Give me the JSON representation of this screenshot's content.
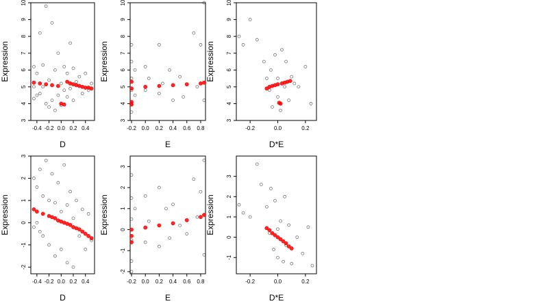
{
  "chart_data": [
    {
      "type": "scatter",
      "xlabel": "D",
      "ylabel": "Expression",
      "xlim": [
        -0.5,
        0.55
      ],
      "ylim": [
        3,
        10
      ],
      "xticks": [
        -0.4,
        -0.2,
        0.0,
        0.2,
        0.4
      ],
      "xtick_labels": [
        "-0.4",
        "-0.2",
        "0.0",
        "0.2",
        "0.4"
      ],
      "yticks": [
        3,
        4,
        5,
        6,
        7,
        8,
        9,
        10
      ],
      "ytick_labels": [
        "3",
        "4",
        "5",
        "6",
        "7",
        "8",
        "9",
        "10"
      ],
      "series": [
        {
          "role": "observed",
          "x": [
            -0.45,
            -0.45,
            -0.45,
            -0.4,
            -0.4,
            -0.35,
            -0.35,
            -0.3,
            -0.3,
            -0.25,
            -0.25,
            -0.2,
            -0.2,
            -0.15,
            -0.15,
            -0.1,
            -0.1,
            -0.05,
            -0.05,
            0.0,
            0.0,
            0.05,
            0.05,
            0.1,
            0.1,
            0.15,
            0.15,
            0.2,
            0.2,
            0.25,
            0.3,
            0.35,
            0.4,
            0.45,
            0.5
          ],
          "y": [
            6.2,
            5.0,
            4.3,
            5.8,
            4.5,
            8.2,
            4.6,
            6.3,
            5.0,
            9.8,
            4.0,
            5.4,
            3.8,
            8.8,
            4.2,
            6.0,
            3.6,
            7.0,
            4.5,
            5.2,
            3.9,
            6.2,
            4.8,
            5.8,
            4.4,
            7.6,
            4.9,
            6.1,
            4.2,
            5.3,
            5.6,
            4.6,
            5.8,
            4.8,
            5.2
          ]
        },
        {
          "role": "fitted",
          "x": [
            -0.45,
            -0.35,
            -0.25,
            -0.15,
            -0.05,
            0.0,
            0.05,
            0.1,
            0.15,
            0.2,
            0.25,
            0.3,
            0.35,
            0.4,
            0.45,
            0.5
          ],
          "y": [
            5.25,
            5.2,
            5.15,
            5.1,
            5.05,
            4.0,
            3.95,
            5.3,
            5.2,
            5.15,
            5.1,
            5.05,
            5.0,
            4.95,
            4.95,
            4.9
          ]
        }
      ]
    },
    {
      "type": "scatter",
      "xlabel": "E",
      "ylabel": "Expression",
      "xlim": [
        -0.22,
        0.87
      ],
      "ylim": [
        3,
        10
      ],
      "xticks": [
        -0.2,
        0.0,
        0.2,
        0.4,
        0.6,
        0.8
      ],
      "xtick_labels": [
        "-0.2",
        "0.0",
        "0.2",
        "0.4",
        "0.6",
        "0.8"
      ],
      "yticks": [
        3,
        4,
        5,
        6,
        7,
        8,
        9,
        10
      ],
      "ytick_labels": [
        "3",
        "4",
        "5",
        "6",
        "7",
        "8",
        "9",
        "10"
      ],
      "series": [
        {
          "role": "observed",
          "x": [
            -0.2,
            -0.2,
            -0.2,
            -0.2,
            -0.2,
            -0.2,
            -0.15,
            -0.15,
            0.0,
            0.0,
            0.05,
            0.2,
            0.2,
            0.25,
            0.35,
            0.4,
            0.5,
            0.55,
            0.7,
            0.75,
            0.8,
            0.85,
            0.85
          ],
          "y": [
            7.5,
            6.5,
            5.5,
            4.8,
            4.0,
            3.5,
            6.0,
            4.5,
            6.2,
            4.8,
            5.5,
            7.5,
            4.6,
            5.2,
            6.0,
            4.2,
            5.6,
            4.4,
            8.2,
            5.0,
            7.5,
            10.0,
            4.2
          ]
        },
        {
          "role": "fitted",
          "x": [
            -0.2,
            -0.2,
            -0.2,
            -0.2,
            0.0,
            0.2,
            0.4,
            0.6,
            0.8,
            0.85
          ],
          "y": [
            5.3,
            4.9,
            4.1,
            3.95,
            5.0,
            5.05,
            5.1,
            5.15,
            5.2,
            5.25
          ]
        }
      ]
    },
    {
      "type": "scatter",
      "xlabel": "D*E",
      "ylabel": "Expression",
      "xlim": [
        -0.3,
        0.28
      ],
      "ylim": [
        3,
        10
      ],
      "xticks": [
        -0.2,
        0.0,
        0.2
      ],
      "xtick_labels": [
        "-0.2",
        "0.0",
        "0.2"
      ],
      "yticks": [
        3,
        4,
        5,
        6,
        7,
        8,
        9,
        10
      ],
      "ytick_labels": [
        "3",
        "4",
        "5",
        "6",
        "7",
        "8",
        "9",
        "10"
      ],
      "series": [
        {
          "role": "observed",
          "x": [
            -0.28,
            -0.25,
            -0.2,
            -0.15,
            -0.1,
            -0.08,
            -0.06,
            -0.05,
            -0.04,
            -0.02,
            0.0,
            0.0,
            0.02,
            0.03,
            0.05,
            0.06,
            0.08,
            0.1,
            0.12,
            0.15,
            0.2,
            0.24
          ],
          "y": [
            8.0,
            7.5,
            9.0,
            7.8,
            6.5,
            5.5,
            4.8,
            6.0,
            3.8,
            6.9,
            5.5,
            4.4,
            3.6,
            7.2,
            5.0,
            6.5,
            4.2,
            5.6,
            5.2,
            5.0,
            6.2,
            4.0
          ]
        },
        {
          "role": "fitted",
          "x": [
            -0.08,
            -0.06,
            -0.04,
            -0.02,
            0.0,
            0.01,
            0.02,
            0.03,
            0.05,
            0.07,
            0.09
          ],
          "y": [
            4.9,
            5.0,
            5.05,
            5.1,
            5.15,
            4.05,
            4.0,
            5.2,
            5.25,
            5.3,
            5.35
          ]
        }
      ]
    },
    {
      "type": "scatter",
      "xlabel": "D",
      "ylabel": "Expression",
      "xlim": [
        -0.5,
        0.55
      ],
      "ylim": [
        -2.3,
        3
      ],
      "xticks": [
        -0.4,
        -0.2,
        0.0,
        0.2,
        0.4
      ],
      "xtick_labels": [
        "-0.4",
        "-0.2",
        "0.0",
        "0.2",
        "0.4"
      ],
      "yticks": [
        -2,
        -1,
        0,
        1,
        2,
        3
      ],
      "ytick_labels": [
        "-2",
        "-1",
        "0",
        "1",
        "2",
        "3"
      ],
      "series": [
        {
          "role": "observed",
          "x": [
            -0.45,
            -0.45,
            -0.4,
            -0.4,
            -0.35,
            -0.35,
            -0.3,
            -0.3,
            -0.25,
            -0.2,
            -0.2,
            -0.15,
            -0.1,
            -0.1,
            -0.05,
            0.0,
            0.0,
            0.05,
            0.1,
            0.1,
            0.15,
            0.2,
            0.2,
            0.25,
            0.3,
            0.35,
            0.4,
            0.45,
            0.5
          ],
          "y": [
            2.0,
            -0.2,
            1.6,
            0.0,
            2.4,
            -0.4,
            1.2,
            -0.6,
            2.8,
            1.0,
            -1.0,
            2.2,
            0.9,
            -1.5,
            1.8,
            0.5,
            -1.2,
            2.6,
            0.8,
            -1.8,
            1.4,
            0.2,
            -2.0,
            1.0,
            -0.6,
            0.6,
            -1.2,
            0.4,
            -0.8
          ]
        },
        {
          "role": "fitted",
          "x": [
            -0.45,
            -0.4,
            -0.3,
            -0.2,
            -0.15,
            -0.1,
            -0.05,
            0.0,
            0.05,
            0.1,
            0.15,
            0.2,
            0.25,
            0.3,
            0.35,
            0.4,
            0.45,
            0.5
          ],
          "y": [
            0.6,
            0.5,
            0.4,
            0.3,
            0.25,
            0.2,
            0.1,
            0.05,
            0.0,
            -0.05,
            -0.1,
            -0.2,
            -0.25,
            -0.3,
            -0.4,
            -0.5,
            -0.6,
            -0.7
          ]
        }
      ]
    },
    {
      "type": "scatter",
      "xlabel": "E",
      "ylabel": "Expression",
      "xlim": [
        -0.22,
        0.87
      ],
      "ylim": [
        -2.1,
        3.5
      ],
      "xticks": [
        -0.2,
        0.0,
        0.2,
        0.4,
        0.6,
        0.8
      ],
      "xtick_labels": [
        "-0.2",
        "0.0",
        "0.2",
        "0.4",
        "0.6",
        "0.8"
      ],
      "yticks": [
        -2,
        -1,
        0,
        1,
        2,
        3
      ],
      "ytick_labels": [
        "-2",
        "-1",
        "0",
        "1",
        "2",
        "3"
      ],
      "series": [
        {
          "role": "observed",
          "x": [
            -0.2,
            -0.2,
            -0.2,
            -0.2,
            -0.2,
            -0.2,
            -0.15,
            0.0,
            0.0,
            0.05,
            0.2,
            0.2,
            0.3,
            0.35,
            0.4,
            0.5,
            0.6,
            0.7,
            0.75,
            0.8,
            0.85,
            0.85
          ],
          "y": [
            2.6,
            1.5,
            0.5,
            -0.5,
            -1.5,
            -2.0,
            1.0,
            1.6,
            -0.6,
            0.4,
            2.0,
            -0.8,
            1.0,
            -0.4,
            1.2,
            0.2,
            -0.2,
            2.4,
            0.6,
            1.8,
            3.3,
            -1.2
          ]
        },
        {
          "role": "fitted",
          "x": [
            -0.2,
            -0.2,
            -0.2,
            0.0,
            0.2,
            0.4,
            0.6,
            0.8,
            0.85
          ],
          "y": [
            0.0,
            -0.3,
            -0.6,
            0.1,
            0.2,
            0.3,
            0.45,
            0.6,
            0.7
          ]
        }
      ]
    },
    {
      "type": "scatter",
      "xlabel": "D*E",
      "ylabel": "Expression",
      "xlim": [
        -0.3,
        0.28
      ],
      "ylim": [
        -1.8,
        4
      ],
      "xticks": [
        -0.2,
        0.0,
        0.2
      ],
      "xtick_labels": [
        "-0.2",
        "0.0",
        "0.2"
      ],
      "yticks": [
        -1,
        0,
        1,
        2,
        3
      ],
      "ytick_labels": [
        "-1",
        "0",
        "1",
        "2",
        "3"
      ],
      "series": [
        {
          "role": "observed",
          "x": [
            -0.28,
            -0.25,
            -0.2,
            -0.15,
            -0.12,
            -0.08,
            -0.06,
            -0.05,
            -0.03,
            -0.02,
            0.0,
            0.0,
            0.02,
            0.04,
            0.05,
            0.06,
            0.08,
            0.1,
            0.14,
            0.18,
            0.22,
            0.25
          ],
          "y": [
            1.6,
            1.2,
            1.0,
            3.6,
            2.6,
            1.5,
            0.2,
            2.4,
            -0.6,
            1.8,
            0.4,
            -1.0,
            0.8,
            -1.2,
            2.0,
            -0.4,
            0.6,
            -1.3,
            0.0,
            -0.8,
            0.5,
            -1.4
          ]
        },
        {
          "role": "fitted",
          "x": [
            -0.08,
            -0.06,
            -0.04,
            -0.02,
            0.0,
            0.02,
            0.04,
            0.06,
            0.08,
            0.1
          ],
          "y": [
            0.45,
            0.35,
            0.2,
            0.1,
            0.0,
            -0.1,
            -0.2,
            -0.3,
            -0.45,
            -0.55
          ]
        }
      ]
    }
  ]
}
